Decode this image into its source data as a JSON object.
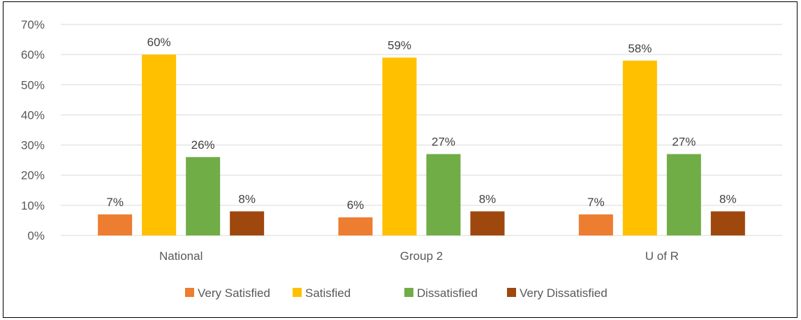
{
  "chart_data": {
    "type": "bar",
    "title": "",
    "xlabel": "",
    "ylabel": "",
    "ylim": [
      0,
      70
    ],
    "y_ticks": [
      0,
      10,
      20,
      30,
      40,
      50,
      60,
      70
    ],
    "y_tick_labels": [
      "0%",
      "10%",
      "20%",
      "30%",
      "40%",
      "50%",
      "60%",
      "70%"
    ],
    "categories": [
      "National",
      "Group 2",
      "U of R"
    ],
    "grid": true,
    "legend_position": "bottom",
    "series": [
      {
        "name": "Very Satisfied",
        "color": "#ED7D31",
        "values": [
          7,
          6,
          7
        ],
        "labels": [
          "7%",
          "6%",
          "7%"
        ]
      },
      {
        "name": "Satisfied",
        "color": "#FFC000",
        "values": [
          60,
          59,
          58
        ],
        "labels": [
          "60%",
          "59%",
          "58%"
        ]
      },
      {
        "name": "Dissatisfied",
        "color": "#70AD47",
        "values": [
          26,
          27,
          27
        ],
        "labels": [
          "26%",
          "27%",
          "27%"
        ]
      },
      {
        "name": "Very Dissatisfied",
        "color": "#9E480E",
        "values": [
          8,
          8,
          8
        ],
        "labels": [
          "8%",
          "8%",
          "8%"
        ]
      }
    ]
  }
}
